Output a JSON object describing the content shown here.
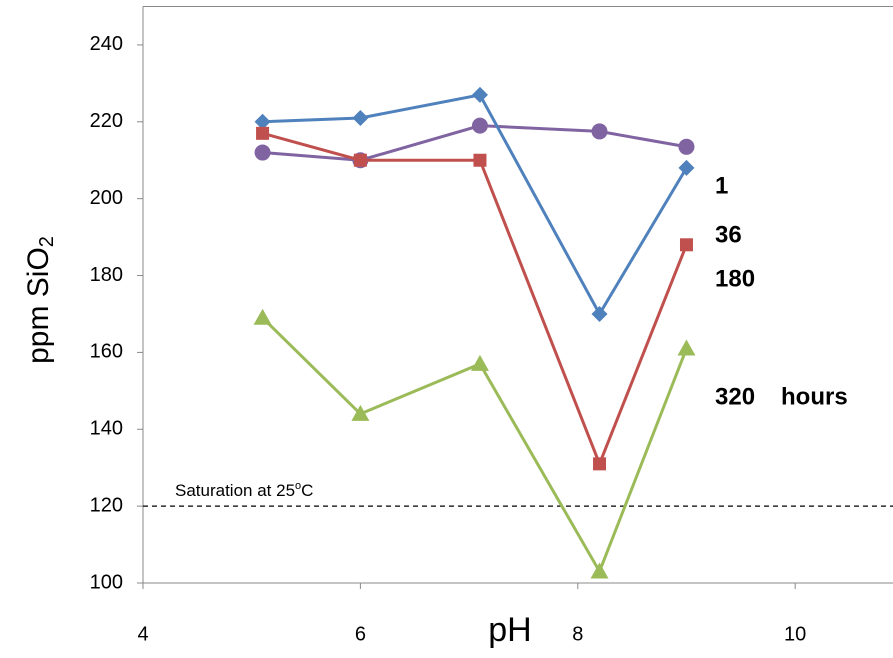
{
  "chart_data": {
    "type": "line",
    "x_label": "pH",
    "y_label": {
      "text": "ppm SiO",
      "sub": "2"
    },
    "series": [
      {
        "name": "1",
        "color": "#8064a2",
        "label_color": "#7030a0",
        "marker": "circle",
        "x": [
          5.1,
          6.0,
          7.1,
          8.2,
          9.0
        ],
        "values": [
          212,
          210,
          219,
          217.5,
          213.5
        ]
      },
      {
        "name": "36",
        "color": "#4f81bd",
        "label_color": "#558ed5",
        "marker": "diamond",
        "x": [
          5.1,
          6.0,
          7.1,
          8.2,
          9.0
        ],
        "values": [
          220,
          221,
          227,
          170,
          208
        ]
      },
      {
        "name": "180",
        "color": "#c0504d",
        "label_color": "#c00000",
        "marker": "square",
        "x": [
          5.1,
          6.0,
          7.1,
          8.2,
          9.0
        ],
        "values": [
          217,
          210,
          210,
          131,
          188
        ]
      },
      {
        "name": "320",
        "color": "#9bbb59",
        "label_color": "#92d050",
        "marker": "triangle",
        "x": [
          5.1,
          6.0,
          7.1,
          8.2,
          9.0
        ],
        "values": [
          169,
          144,
          157,
          103,
          161
        ]
      }
    ],
    "series_unit": "hours",
    "saturation": {
      "value": 120,
      "label": "Saturation at 25",
      "sup": "o",
      "end": "C"
    },
    "xlim": [
      4,
      10.9
    ],
    "xticks": [
      4,
      6,
      8,
      10
    ],
    "ylim": [
      100,
      250
    ],
    "yticks": [
      100,
      120,
      140,
      160,
      180,
      200,
      220,
      240
    ]
  }
}
